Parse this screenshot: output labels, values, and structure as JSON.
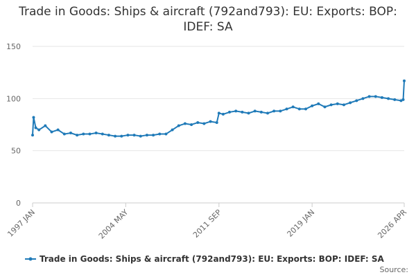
{
  "chart_data": {
    "type": "line",
    "title": "Trade in Goods: Ships & aircraft (792and793): EU: Exports: BOP: IDEF: SA",
    "source_label": "Source:",
    "x": [
      1997.0,
      1997.08,
      1997.25,
      1997.5,
      1998.0,
      1998.5,
      1999.0,
      1999.5,
      2000.0,
      2000.5,
      2001.0,
      2001.5,
      2002.0,
      2002.5,
      2003.0,
      2003.5,
      2004.0,
      2004.5,
      2005.0,
      2005.5,
      2006.0,
      2006.5,
      2007.0,
      2007.5,
      2008.0,
      2008.5,
      2009.0,
      2009.5,
      2010.0,
      2010.5,
      2011.0,
      2011.5,
      2011.67,
      2012.0,
      2012.5,
      2013.0,
      2013.5,
      2014.0,
      2014.5,
      2015.0,
      2015.5,
      2016.0,
      2016.5,
      2017.0,
      2017.5,
      2018.0,
      2018.5,
      2019.0,
      2019.5,
      2020.0,
      2020.5,
      2021.0,
      2021.5,
      2022.0,
      2022.5,
      2023.0,
      2023.5,
      2024.0,
      2024.5,
      2025.0,
      2025.5,
      2026.0,
      2026.17,
      2026.25
    ],
    "series": [
      {
        "name": "Trade in Goods: Ships & aircraft (792and793): EU: Exports: BOP: IDEF: SA",
        "color": "#1f7ab8",
        "values": [
          65,
          82,
          72,
          70,
          74,
          68,
          70,
          66,
          67,
          65,
          66,
          66,
          67,
          66,
          65,
          64,
          64,
          65,
          65,
          64,
          65,
          65,
          66,
          66,
          70,
          74,
          76,
          75,
          77,
          76,
          78,
          77,
          86,
          85,
          87,
          88,
          87,
          86,
          88,
          87,
          86,
          88,
          88,
          90,
          92,
          90,
          90,
          93,
          95,
          92,
          94,
          95,
          94,
          96,
          98,
          100,
          102,
          102,
          101,
          100,
          99,
          98,
          99,
          117
        ]
      }
    ],
    "xlim": [
      1997.0,
      2026.25
    ],
    "xticks": [
      {
        "value": 1997.0,
        "label": "1997 JAN"
      },
      {
        "value": 2004.33,
        "label": "2004 MAY"
      },
      {
        "value": 2011.67,
        "label": "2011 SEP"
      },
      {
        "value": 2019.0,
        "label": "2019 JAN"
      },
      {
        "value": 2026.25,
        "label": "2026 APR"
      }
    ],
    "ylim": [
      0,
      150
    ],
    "yticks": [
      0,
      50,
      100,
      150
    ],
    "grid": true
  }
}
